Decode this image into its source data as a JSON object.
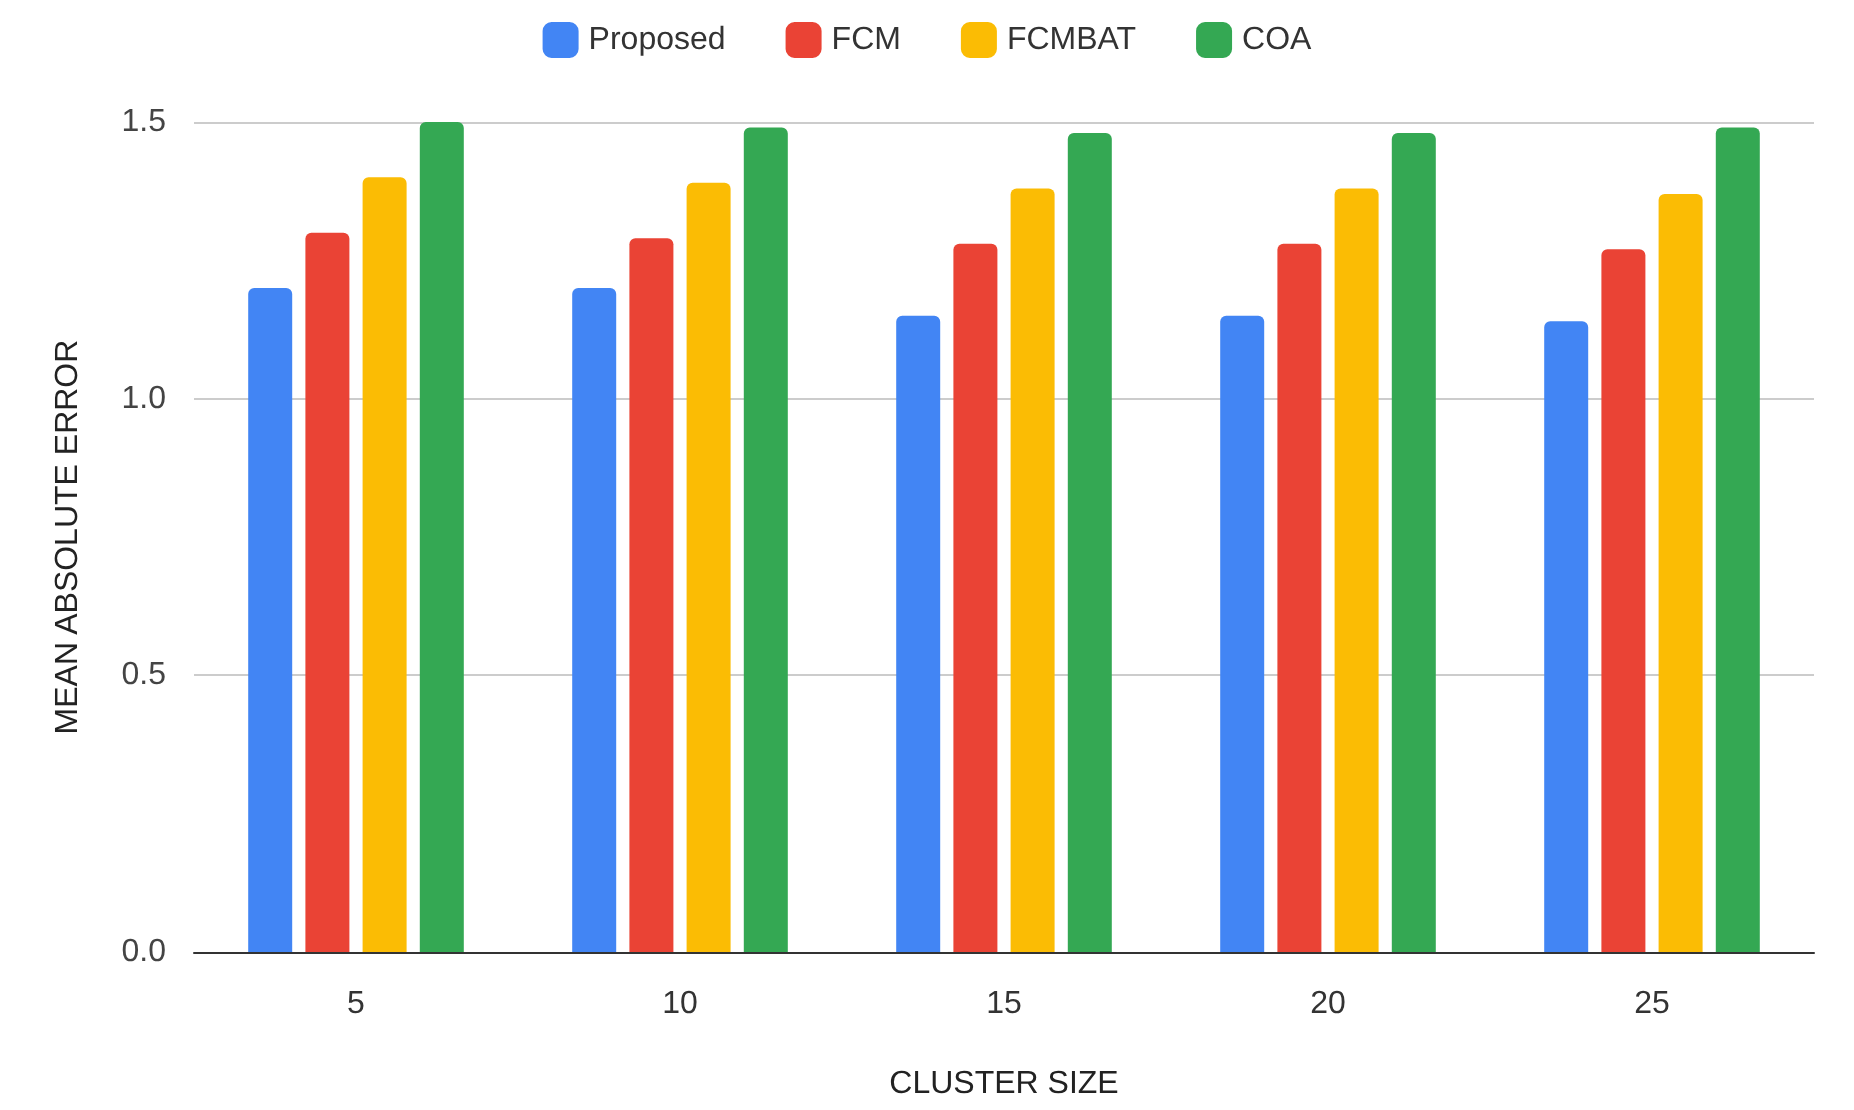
{
  "chart_data": {
    "type": "bar",
    "xlabel": "CLUSTER SIZE",
    "ylabel": "MEAN ABSOLUTE ERROR",
    "categories": [
      "5",
      "10",
      "15",
      "20",
      "25"
    ],
    "series": [
      {
        "name": "Proposed",
        "color": "#4285f4",
        "values": [
          1.2,
          1.2,
          1.15,
          1.15,
          1.14
        ]
      },
      {
        "name": "FCM",
        "color": "#ea4335",
        "values": [
          1.3,
          1.29,
          1.28,
          1.28,
          1.27
        ]
      },
      {
        "name": "FCMBAT",
        "color": "#fbbc04",
        "values": [
          1.4,
          1.39,
          1.38,
          1.38,
          1.37
        ]
      },
      {
        "name": "COA",
        "color": "#34a853",
        "values": [
          1.5,
          1.49,
          1.48,
          1.48,
          1.49
        ]
      }
    ],
    "ylim": [
      0,
      1.5
    ],
    "yticks": [
      {
        "value": 0,
        "label": "0.0"
      },
      {
        "value": 0.5,
        "label": "0.5"
      },
      {
        "value": 1,
        "label": "1.0"
      },
      {
        "value": 1.5,
        "label": "1.5"
      }
    ],
    "grid": "y",
    "legend": "top"
  }
}
